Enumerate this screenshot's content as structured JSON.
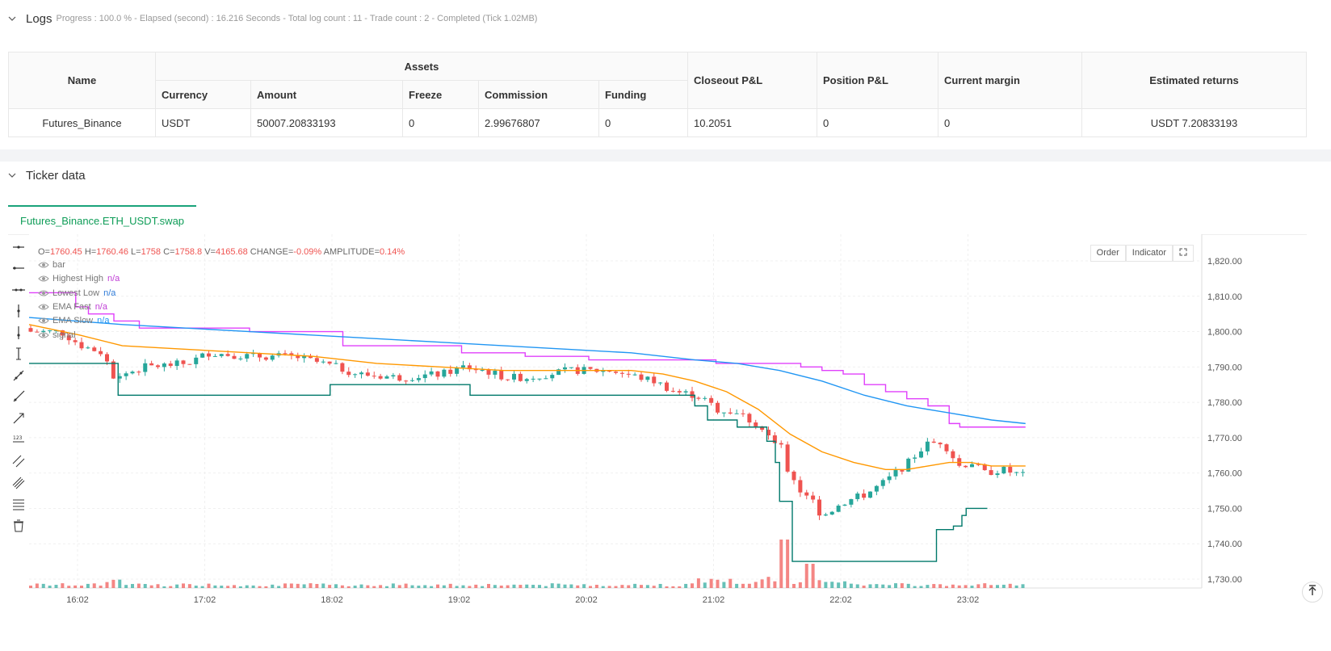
{
  "logs": {
    "title": "Logs",
    "status": "Progress : 100.0 % - Elapsed (second) : 16.216  Seconds - Total log count : 11 - Trade count : 2 - Completed (Tick 1.02MB)"
  },
  "assets_table": {
    "headers": {
      "name": "Name",
      "assets": "Assets",
      "currency": "Currency",
      "amount": "Amount",
      "freeze": "Freeze",
      "commission": "Commission",
      "funding": "Funding",
      "closeout_pl": "Closeout P&L",
      "position_pl": "Position P&L",
      "current_margin": "Current margin",
      "estimated_returns": "Estimated returns"
    },
    "row": {
      "name": "Futures_Binance",
      "currency": "USDT",
      "amount": "50007.20833193",
      "freeze": "0",
      "commission": "2.99676807",
      "funding": "0",
      "closeout_pl": "10.2051",
      "position_pl": "0",
      "current_margin": "0",
      "estimated_returns": "USDT 7.20833193"
    }
  },
  "ticker": {
    "title": "Ticker data",
    "tab": "Futures_Binance.ETH_USDT.swap",
    "buttons": {
      "order": "Order",
      "indicator": "Indicator"
    }
  },
  "ohlc": {
    "o_label": "O=",
    "o": "1760.45",
    "h_label": "H=",
    "h": "1760.46",
    "l_label": "L=",
    "l": "1758",
    "c_label": "C=",
    "c": "1758.8",
    "v_label": "V=",
    "v": "4165.68",
    "change_label": "CHANGE=",
    "change": "-0.09%",
    "amp_label": "AMPLITUDE=",
    "amp": "0.14%"
  },
  "legend": [
    {
      "name": "bar",
      "value": "",
      "color": "#777777"
    },
    {
      "name": "Highest High",
      "value": "n/a",
      "color": "#c03fd6"
    },
    {
      "name": "Lowest Low",
      "value": "n/a",
      "color": "#2f7bd8"
    },
    {
      "name": "EMA Fast",
      "value": "n/a",
      "color": "#c03fd6"
    },
    {
      "name": "EMA Slow",
      "value": "n/a",
      "color": "#2196f3"
    },
    {
      "name": "signal",
      "value": "",
      "color": "#777777"
    }
  ],
  "colors": {
    "up": "#26a69a",
    "down": "#ef5350",
    "highest_high": "#e040fb",
    "lowest_low": "#00796b",
    "ema_fast": "#ff9800",
    "ema_slow": "#2196f3",
    "accent": "#1aa37a"
  },
  "chart_data": {
    "type": "candlestick",
    "y_ticks": [
      "1,820.00",
      "1,810.00",
      "1,800.00",
      "1,790.00",
      "1,780.00",
      "1,770.00",
      "1,760.00",
      "1,750.00",
      "1,740.00",
      "1,730.00"
    ],
    "ylim": [
      1728,
      1824
    ],
    "x_ticks": [
      "16:02",
      "17:02",
      "18:02",
      "19:02",
      "20:02",
      "21:02",
      "22:02",
      "23:02"
    ],
    "time_range": [
      "15:46",
      "23:36"
    ],
    "series": [
      {
        "name": "Highest High",
        "points": [
          [
            "15:46",
            1811
          ],
          [
            "16:08",
            1807
          ],
          [
            "16:14",
            1805
          ],
          [
            "16:26",
            1803
          ],
          [
            "16:38",
            1801
          ],
          [
            "17:02",
            1801
          ],
          [
            "17:30",
            1800
          ],
          [
            "18:08",
            1800
          ],
          [
            "18:14",
            1796
          ],
          [
            "19:00",
            1796
          ],
          [
            "19:10",
            1794
          ],
          [
            "19:40",
            1793
          ],
          [
            "20:00",
            1793
          ],
          [
            "20:10",
            1792
          ],
          [
            "20:50",
            1792
          ],
          [
            "21:10",
            1791
          ],
          [
            "21:30",
            1791
          ],
          [
            "21:50",
            1790
          ],
          [
            "22:00",
            1789
          ],
          [
            "22:10",
            1788
          ],
          [
            "22:20",
            1785
          ],
          [
            "22:30",
            1783
          ],
          [
            "22:40",
            1781
          ],
          [
            "22:50",
            1779
          ],
          [
            "23:00",
            1774
          ],
          [
            "23:05",
            1773
          ],
          [
            "23:36",
            1773
          ]
        ]
      },
      {
        "name": "Lowest Low",
        "points": [
          [
            "15:46",
            1791
          ],
          [
            "16:10",
            1791
          ],
          [
            "16:26",
            1791
          ],
          [
            "16:28",
            1782
          ],
          [
            "17:30",
            1782
          ],
          [
            "18:00",
            1782
          ],
          [
            "18:06",
            1782
          ],
          [
            "18:08",
            1785
          ],
          [
            "19:10",
            1785
          ],
          [
            "19:14",
            1782
          ],
          [
            "20:50",
            1782
          ],
          [
            "21:00",
            1779
          ],
          [
            "21:06",
            1775
          ],
          [
            "21:20",
            1773
          ],
          [
            "21:34",
            1769
          ],
          [
            "21:38",
            1763
          ],
          [
            "21:40",
            1752
          ],
          [
            "21:44",
            1752
          ],
          [
            "21:46",
            1735
          ],
          [
            "22:00",
            1735
          ],
          [
            "22:20",
            1735
          ],
          [
            "22:50",
            1735
          ],
          [
            "22:54",
            1744
          ],
          [
            "22:58",
            1744
          ],
          [
            "23:02",
            1745
          ],
          [
            "23:06",
            1748
          ],
          [
            "23:08",
            1750
          ],
          [
            "23:18",
            1750
          ]
        ]
      },
      {
        "name": "EMA Fast",
        "points": [
          [
            "15:46",
            1802
          ],
          [
            "16:10",
            1799
          ],
          [
            "16:30",
            1796
          ],
          [
            "17:00",
            1795
          ],
          [
            "17:30",
            1794
          ],
          [
            "18:00",
            1793
          ],
          [
            "18:30",
            1791
          ],
          [
            "19:00",
            1790
          ],
          [
            "19:30",
            1789
          ],
          [
            "20:00",
            1789
          ],
          [
            "20:30",
            1789
          ],
          [
            "20:45",
            1788
          ],
          [
            "21:00",
            1786
          ],
          [
            "21:15",
            1783
          ],
          [
            "21:30",
            1778
          ],
          [
            "21:45",
            1771
          ],
          [
            "22:00",
            1766
          ],
          [
            "22:15",
            1763
          ],
          [
            "22:30",
            1761
          ],
          [
            "22:40",
            1761
          ],
          [
            "22:50",
            1762
          ],
          [
            "23:00",
            1763
          ],
          [
            "23:10",
            1763
          ],
          [
            "23:20",
            1762
          ],
          [
            "23:36",
            1762
          ]
        ]
      },
      {
        "name": "EMA Slow",
        "points": [
          [
            "15:46",
            1804
          ],
          [
            "16:30",
            1802
          ],
          [
            "17:00",
            1801
          ],
          [
            "17:30",
            1800
          ],
          [
            "18:00",
            1799
          ],
          [
            "18:30",
            1798
          ],
          [
            "19:00",
            1797
          ],
          [
            "19:30",
            1796
          ],
          [
            "20:00",
            1795
          ],
          [
            "20:30",
            1794
          ],
          [
            "21:00",
            1792
          ],
          [
            "21:20",
            1791
          ],
          [
            "21:40",
            1789
          ],
          [
            "22:00",
            1786
          ],
          [
            "22:20",
            1782
          ],
          [
            "22:40",
            1779
          ],
          [
            "23:00",
            1777
          ],
          [
            "23:20",
            1775
          ],
          [
            "23:36",
            1774
          ]
        ]
      }
    ],
    "last_price": 1758.8
  }
}
